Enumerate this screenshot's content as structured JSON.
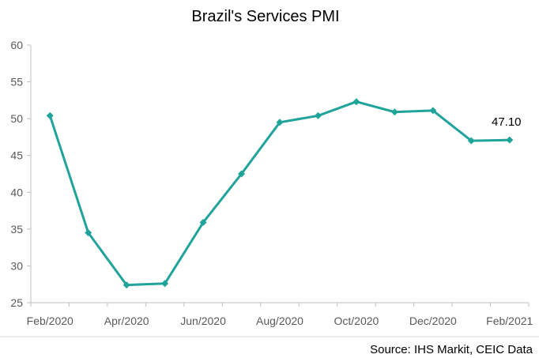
{
  "chart_data": {
    "type": "line",
    "title": "Brazil's Services PMI",
    "xlabel": "",
    "ylabel": "",
    "ylim": [
      25,
      60
    ],
    "yticks": [
      25,
      30,
      35,
      40,
      45,
      50,
      55,
      60
    ],
    "categories": [
      "Feb/2020",
      "Mar/2020",
      "Apr/2020",
      "May/2020",
      "Jun/2020",
      "Jul/2020",
      "Aug/2020",
      "Sep/2020",
      "Oct/2020",
      "Nov/2020",
      "Dec/2020",
      "Jan/2021",
      "Feb/2021"
    ],
    "xtick_labels": [
      "Feb/2020",
      "Apr/2020",
      "Jun/2020",
      "Aug/2020",
      "Oct/2020",
      "Dec/2020",
      "Feb/2021"
    ],
    "series": [
      {
        "values": [
          50.4,
          34.5,
          27.4,
          27.6,
          35.9,
          42.5,
          49.5,
          50.4,
          52.3,
          50.9,
          51.1,
          47.0,
          47.1
        ],
        "color": "#1fa39a"
      }
    ],
    "annotations": [
      {
        "category": "Feb/2021",
        "text": "47.10"
      }
    ],
    "grid": false,
    "legend": "none"
  },
  "footer": {
    "source": "Source: IHS Markit, CEIC Data"
  }
}
